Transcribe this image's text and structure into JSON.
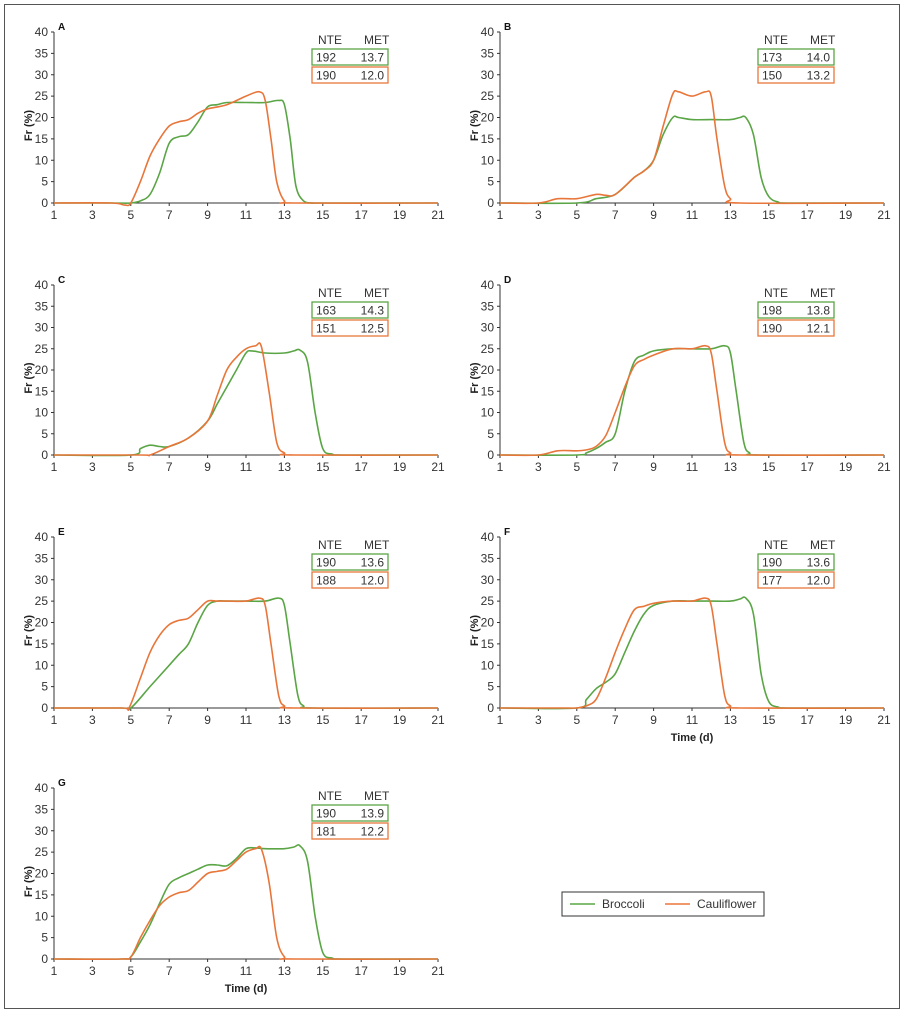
{
  "colors": {
    "broccoli": "#5aa545",
    "cauliflower": "#e8763a",
    "axis": "#333333"
  },
  "legend": {
    "items": [
      {
        "name": "Broccoli",
        "key": "broccoli"
      },
      {
        "name": "Cauliflower",
        "key": "cauliflower"
      }
    ],
    "placement": "bottom-right"
  },
  "chart_data": [
    {
      "type": "line",
      "panel": "A",
      "xlabel": "",
      "ylabel": "Fr (%)",
      "xlim": [
        1,
        21
      ],
      "ylim": [
        0,
        40
      ],
      "xticks": [
        1,
        3,
        5,
        7,
        9,
        11,
        13,
        15,
        17,
        19,
        21
      ],
      "yticks": [
        0,
        5,
        10,
        15,
        20,
        25,
        30,
        35,
        40
      ],
      "table": {
        "headers": [
          "NTE",
          "MET"
        ],
        "rows": [
          {
            "series": "Broccoli",
            "NTE": "192",
            "MET": "13.7"
          },
          {
            "series": "Cauliflower",
            "NTE": "190",
            "MET": "12.0"
          }
        ]
      },
      "series": [
        {
          "name": "Broccoli",
          "x": [
            1,
            4,
            5,
            5.5,
            6,
            6.5,
            7,
            7.5,
            8,
            8.5,
            9,
            9.5,
            10,
            11,
            12,
            12.7,
            13,
            13.3,
            13.6,
            14,
            14.5,
            15,
            21
          ],
          "y": [
            0,
            0,
            0,
            0.5,
            2,
            7,
            14,
            15.5,
            16,
            19,
            22.5,
            23,
            23.5,
            23.5,
            23.5,
            24,
            23,
            15,
            4,
            0.5,
            0,
            0,
            0
          ]
        },
        {
          "name": "Cauliflower",
          "x": [
            1,
            4,
            4.7,
            5,
            5.5,
            6,
            6.5,
            7,
            7.5,
            8,
            8.5,
            9,
            10,
            11,
            11.7,
            12,
            12.3,
            12.6,
            13,
            13.5,
            21
          ],
          "y": [
            0,
            0,
            -0.5,
            0,
            5,
            11,
            15,
            18,
            19,
            19.5,
            21,
            22,
            23,
            25,
            26,
            24,
            15,
            5,
            0.5,
            0,
            0
          ]
        }
      ]
    },
    {
      "type": "line",
      "panel": "B",
      "xlabel": "",
      "ylabel": "Fr (%)",
      "xlim": [
        1,
        21
      ],
      "ylim": [
        0,
        40
      ],
      "xticks": [
        1,
        3,
        5,
        7,
        9,
        11,
        13,
        15,
        17,
        19,
        21
      ],
      "yticks": [
        0,
        5,
        10,
        15,
        20,
        25,
        30,
        35,
        40
      ],
      "table": {
        "headers": [
          "NTE",
          "MET"
        ],
        "rows": [
          {
            "series": "Broccoli",
            "NTE": "173",
            "MET": "14.0"
          },
          {
            "series": "Cauliflower",
            "NTE": "150",
            "MET": "13.2"
          }
        ]
      },
      "series": [
        {
          "name": "Broccoli",
          "x": [
            1,
            5,
            6,
            7,
            8,
            8.5,
            9,
            9.5,
            10,
            10.3,
            11,
            12,
            13,
            13.5,
            13.8,
            14.2,
            14.6,
            15,
            15.5,
            16,
            21
          ],
          "y": [
            0,
            0,
            1,
            2,
            6,
            7.5,
            10,
            16,
            20,
            20,
            19.5,
            19.5,
            19.5,
            20,
            20,
            16,
            6,
            1.5,
            0.2,
            0,
            0
          ]
        },
        {
          "name": "Cauliflower",
          "x": [
            1,
            3,
            4,
            5,
            6,
            6.5,
            7,
            8,
            8.5,
            9,
            9.5,
            10,
            10.3,
            11,
            11.7,
            12,
            12.3,
            12.7,
            13,
            13.5,
            21
          ],
          "y": [
            0,
            0,
            1,
            1,
            2,
            1.8,
            2,
            6,
            7.5,
            10,
            18,
            25.5,
            26,
            25,
            26,
            25,
            15,
            4,
            1,
            0,
            0
          ]
        }
      ]
    },
    {
      "type": "line",
      "panel": "C",
      "xlabel": "",
      "ylabel": "Fr (%)",
      "xlim": [
        1,
        21
      ],
      "ylim": [
        0,
        40
      ],
      "xticks": [
        1,
        3,
        5,
        7,
        9,
        11,
        13,
        15,
        17,
        19,
        21
      ],
      "yticks": [
        0,
        5,
        10,
        15,
        20,
        25,
        30,
        35,
        40
      ],
      "table": {
        "headers": [
          "NTE",
          "MET"
        ],
        "rows": [
          {
            "series": "Broccoli",
            "NTE": "163",
            "MET": "14.3"
          },
          {
            "series": "Cauliflower",
            "NTE": "151",
            "MET": "12.5"
          }
        ]
      },
      "series": [
        {
          "name": "Broccoli",
          "x": [
            1,
            5,
            5.5,
            6,
            6.5,
            7,
            8,
            9,
            9.5,
            10,
            10.5,
            11,
            11.3,
            12,
            13,
            13.5,
            13.8,
            14.2,
            14.6,
            15,
            15.5,
            16,
            21
          ],
          "y": [
            0,
            0,
            1.5,
            2.3,
            2,
            2,
            4,
            8,
            12,
            16,
            20,
            24,
            24.5,
            24,
            24,
            24.5,
            24.7,
            22,
            10,
            1.5,
            0.2,
            0,
            0
          ]
        },
        {
          "name": "Cauliflower",
          "x": [
            1,
            5.5,
            6,
            7,
            8,
            9,
            9.5,
            10,
            10.5,
            11,
            11.5,
            11.8,
            12.2,
            12.6,
            13,
            13.5,
            21
          ],
          "y": [
            0,
            0,
            0,
            2,
            4,
            8,
            14,
            20,
            23,
            25,
            25.7,
            25.5,
            15,
            3,
            0.5,
            0,
            0
          ]
        }
      ]
    },
    {
      "type": "line",
      "panel": "D",
      "xlabel": "",
      "ylabel": "Fr (%)",
      "xlim": [
        1,
        21
      ],
      "ylim": [
        0,
        40
      ],
      "xticks": [
        1,
        3,
        5,
        7,
        9,
        11,
        13,
        15,
        17,
        19,
        21
      ],
      "yticks": [
        0,
        5,
        10,
        15,
        20,
        25,
        30,
        35,
        40
      ],
      "table": {
        "headers": [
          "NTE",
          "MET"
        ],
        "rows": [
          {
            "series": "Broccoli",
            "NTE": "198",
            "MET": "13.8"
          },
          {
            "series": "Cauliflower",
            "NTE": "190",
            "MET": "12.1"
          }
        ]
      },
      "series": [
        {
          "name": "Broccoli",
          "x": [
            1,
            5,
            5.5,
            6,
            6.5,
            7,
            7.5,
            8,
            8.5,
            9,
            10,
            11,
            12,
            12.7,
            13,
            13.3,
            13.7,
            14,
            14.5,
            21
          ],
          "y": [
            0,
            0,
            0.5,
            1.5,
            3,
            5,
            15,
            22,
            23.5,
            24.5,
            25,
            25,
            25,
            25.7,
            24,
            15,
            3,
            0.5,
            0,
            0
          ]
        },
        {
          "name": "Cauliflower",
          "x": [
            1,
            3,
            4,
            5,
            5.5,
            6,
            6.5,
            7,
            7.5,
            8,
            8.5,
            9,
            10,
            11,
            11.7,
            12,
            12.3,
            12.7,
            13,
            13.5,
            21
          ],
          "y": [
            0,
            0,
            1,
            1,
            1.2,
            2,
            4.5,
            10,
            16,
            21,
            22.5,
            23.5,
            25,
            25,
            25.7,
            24,
            15,
            3,
            0.5,
            0,
            0
          ]
        }
      ]
    },
    {
      "type": "line",
      "panel": "E",
      "xlabel": "",
      "ylabel": "Fr (%)",
      "xlim": [
        1,
        21
      ],
      "ylim": [
        0,
        40
      ],
      "xticks": [
        1,
        3,
        5,
        7,
        9,
        11,
        13,
        15,
        17,
        19,
        21
      ],
      "yticks": [
        0,
        5,
        10,
        15,
        20,
        25,
        30,
        35,
        40
      ],
      "table": {
        "headers": [
          "NTE",
          "MET"
        ],
        "rows": [
          {
            "series": "Broccoli",
            "NTE": "190",
            "MET": "13.6"
          },
          {
            "series": "Cauliflower",
            "NTE": "188",
            "MET": "12.0"
          }
        ]
      },
      "series": [
        {
          "name": "Broccoli",
          "x": [
            1,
            4.5,
            5,
            6,
            7,
            7.5,
            8,
            8.5,
            9,
            9.5,
            10,
            11,
            12,
            12.7,
            13,
            13.3,
            13.7,
            14,
            14.5,
            21
          ],
          "y": [
            0,
            0,
            0,
            5,
            10,
            12.5,
            15,
            20,
            24,
            25,
            25,
            25,
            25,
            25.7,
            24,
            15,
            3,
            0.5,
            0,
            0
          ]
        },
        {
          "name": "Cauliflower",
          "x": [
            1,
            4.5,
            4.9,
            5.5,
            6,
            6.5,
            7,
            7.5,
            8,
            8.5,
            9,
            9.5,
            10,
            11,
            11.7,
            12,
            12.3,
            12.7,
            13,
            13.5,
            21
          ],
          "y": [
            0,
            0,
            0,
            7,
            13,
            17,
            19.5,
            20.5,
            21,
            23,
            25,
            25,
            25,
            25,
            25.7,
            24,
            15,
            3,
            0.5,
            0,
            0
          ]
        }
      ]
    },
    {
      "type": "line",
      "panel": "F",
      "xlabel": "Time (d)",
      "ylabel": "Fr (%)",
      "xlim": [
        1,
        21
      ],
      "ylim": [
        0,
        40
      ],
      "xticks": [
        1,
        3,
        5,
        7,
        9,
        11,
        13,
        15,
        17,
        19,
        21
      ],
      "yticks": [
        0,
        5,
        10,
        15,
        20,
        25,
        30,
        35,
        40
      ],
      "table": {
        "headers": [
          "NTE",
          "MET"
        ],
        "rows": [
          {
            "series": "Broccoli",
            "NTE": "190",
            "MET": "13.6"
          },
          {
            "series": "Cauliflower",
            "NTE": "177",
            "MET": "12.0"
          }
        ]
      },
      "series": [
        {
          "name": "Broccoli",
          "x": [
            1,
            5,
            5.5,
            6,
            6.5,
            7,
            7.5,
            8,
            8.5,
            9,
            10,
            11,
            12,
            13,
            13.5,
            13.8,
            14.2,
            14.6,
            15,
            15.5,
            16,
            21
          ],
          "y": [
            0,
            0,
            2,
            4.5,
            6,
            8,
            13,
            18,
            22,
            24,
            25,
            25,
            25,
            25,
            25.5,
            25.7,
            22,
            8,
            1.5,
            0.2,
            0,
            0
          ]
        },
        {
          "name": "Cauliflower",
          "x": [
            1,
            4.5,
            5,
            5.5,
            6,
            6.5,
            7,
            7.5,
            8,
            8.5,
            9,
            10,
            11,
            11.7,
            12,
            12.3,
            12.7,
            13,
            13.5,
            21
          ],
          "y": [
            0,
            0,
            0,
            0.5,
            2,
            7,
            13,
            18.5,
            23,
            23.8,
            24.5,
            25,
            25,
            25.7,
            24,
            15,
            3,
            0.5,
            0,
            0
          ]
        }
      ]
    },
    {
      "type": "line",
      "panel": "G",
      "xlabel": "Time (d)",
      "ylabel": "Fr (%)",
      "xlim": [
        1,
        21
      ],
      "ylim": [
        0,
        40
      ],
      "xticks": [
        1,
        3,
        5,
        7,
        9,
        11,
        13,
        15,
        17,
        19,
        21
      ],
      "yticks": [
        0,
        5,
        10,
        15,
        20,
        25,
        30,
        35,
        40
      ],
      "table": {
        "headers": [
          "NTE",
          "MET"
        ],
        "rows": [
          {
            "series": "Broccoli",
            "NTE": "190",
            "MET": "13.9"
          },
          {
            "series": "Cauliflower",
            "NTE": "181",
            "MET": "12.2"
          }
        ]
      },
      "series": [
        {
          "name": "Broccoli",
          "x": [
            1,
            4.5,
            5,
            5.5,
            6,
            6.5,
            7,
            7.5,
            8,
            8.5,
            9,
            9.5,
            10,
            10.5,
            11,
            11.5,
            12,
            13,
            13.5,
            13.8,
            14.2,
            14.6,
            15,
            15.5,
            16,
            21
          ],
          "y": [
            0,
            0,
            0.5,
            4,
            8,
            13,
            17.5,
            19,
            20,
            21,
            22,
            22,
            21.8,
            23.5,
            25.8,
            26,
            25.8,
            25.8,
            26.2,
            26.5,
            23,
            10,
            1.5,
            0.2,
            0,
            0
          ]
        },
        {
          "name": "Cauliflower",
          "x": [
            1,
            4.5,
            5,
            5.5,
            6,
            6.5,
            7,
            7.5,
            8,
            8.5,
            9,
            9.5,
            10,
            10.5,
            11,
            11.5,
            11.8,
            12.2,
            12.6,
            13,
            13.5,
            21
          ],
          "y": [
            0,
            0,
            0.5,
            5,
            9,
            12.5,
            14.5,
            15.5,
            16,
            18,
            20,
            20.5,
            21,
            23,
            25,
            25.8,
            25.7,
            18,
            5,
            0.5,
            0,
            0
          ]
        }
      ]
    }
  ]
}
